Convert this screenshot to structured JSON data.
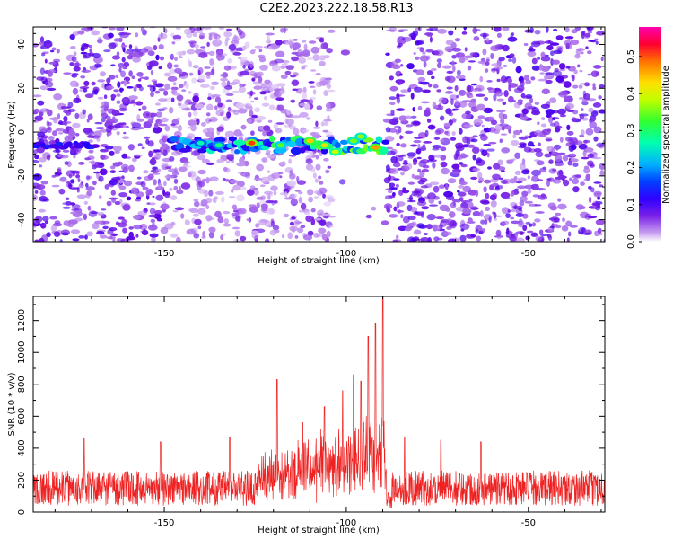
{
  "title": "C2E2.2023.222.18.58.R13",
  "chart_data": [
    {
      "type": "heatmap",
      "xlabel": "Height of straight line (km)",
      "ylabel": "Frequency (Hz)",
      "xlim": [
        -186,
        -29
      ],
      "ylim": [
        -50,
        48
      ],
      "xticks": [
        -150,
        -100,
        -50
      ],
      "yticks": [
        -40,
        -20,
        0,
        20,
        40
      ],
      "colorbar": {
        "label": "Normalized spectral amplitude",
        "range": [
          0,
          0.58
        ],
        "ticks": [
          0.0,
          0.1,
          0.2,
          0.3,
          0.4,
          0.5
        ],
        "tick_labels": [
          "0.0",
          "0.1",
          "0.2",
          "0.3",
          "0.4",
          "0.5"
        ]
      },
      "features": {
        "signal_band": {
          "x_range": [
            -148,
            -89
          ],
          "frequency_hz": -6,
          "peak_amplitude": 0.55
        },
        "gap_no_data": {
          "x_range": [
            -104,
            -89
          ]
        },
        "low_level_band": {
          "x_range": [
            -186,
            -168
          ],
          "frequency_hz": -6
        }
      },
      "colors": [
        "#ffffff",
        "#c9a6ee",
        "#8a33e0",
        "#5a00e0",
        "#0000ff",
        "#00c8ff",
        "#00ff80",
        "#a0ff00",
        "#ffff00",
        "#ff9000",
        "#ff0000",
        "#ff00ff"
      ]
    },
    {
      "type": "line",
      "xlabel": "Height of straight line (km)",
      "ylabel": "SNR (10 * v/v)",
      "xlim": [
        -186,
        -29
      ],
      "ylim": [
        0,
        1350
      ],
      "xticks": [
        -150,
        -100,
        -50
      ],
      "yticks": [
        0,
        200,
        400,
        600,
        800,
        1000,
        1200
      ],
      "color": "#ee2222",
      "baseline_range": [
        40,
        260
      ],
      "peaks": [
        {
          "x": -172,
          "y": 460
        },
        {
          "x": -151,
          "y": 440
        },
        {
          "x": -132,
          "y": 470
        },
        {
          "x": -119,
          "y": 830
        },
        {
          "x": -112,
          "y": 560
        },
        {
          "x": -106,
          "y": 660
        },
        {
          "x": -101,
          "y": 760
        },
        {
          "x": -98,
          "y": 860
        },
        {
          "x": -96,
          "y": 820
        },
        {
          "x": -94,
          "y": 1100
        },
        {
          "x": -92,
          "y": 1180
        },
        {
          "x": -90,
          "y": 1350
        },
        {
          "x": -88.5,
          "y": 120
        },
        {
          "x": -84,
          "y": 470
        },
        {
          "x": -74,
          "y": 450
        },
        {
          "x": -63,
          "y": 440
        }
      ]
    }
  ]
}
